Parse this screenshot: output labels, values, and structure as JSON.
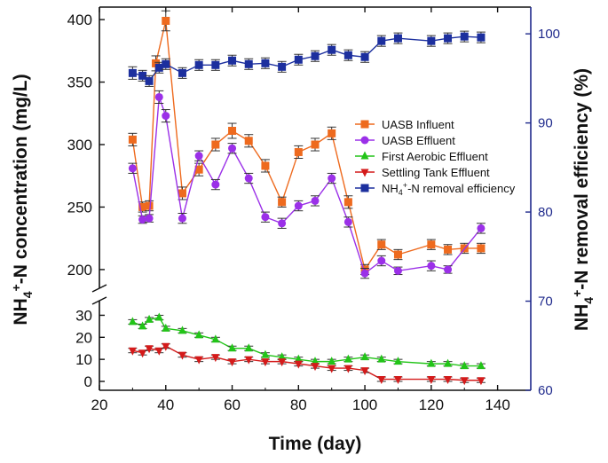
{
  "chart_data": {
    "type": "line",
    "xlabel": "Time (day)",
    "ylabel_left": {
      "main": "NH",
      "sub": "4",
      "sup": "+",
      "rest": "-N concentration (mg/L)"
    },
    "ylabel_right": {
      "main": "NH",
      "sub": "4",
      "sup": "+",
      "rest": "-N removal efficiency (%)"
    },
    "xlim": [
      20,
      150
    ],
    "xticks": [
      20,
      40,
      60,
      80,
      100,
      120,
      140
    ],
    "ylim_left_upper": [
      190,
      410
    ],
    "yticks_left_upper": [
      200,
      250,
      300,
      350,
      400
    ],
    "ylim_left_lower": [
      0,
      33
    ],
    "yticks_left_lower": [
      0,
      10,
      20,
      30
    ],
    "ylim_right": [
      60,
      103
    ],
    "yticks_right": [
      60,
      70,
      80,
      90,
      100
    ],
    "series": [
      {
        "name": "UASB Influent",
        "color": "#ee6a1e",
        "marker": "square",
        "axis": "left",
        "x": [
          30,
          33,
          35,
          37,
          40,
          45,
          50,
          55,
          60,
          65,
          70,
          75,
          80,
          85,
          90,
          95,
          100,
          105,
          110,
          120,
          125,
          130,
          135
        ],
        "y": [
          304,
          250,
          251,
          365,
          399,
          261,
          280,
          300,
          311,
          303,
          283,
          254,
          294,
          300,
          309,
          254,
          200,
          220,
          212,
          220,
          216,
          217,
          217
        ],
        "error": [
          5,
          4,
          4,
          6,
          8,
          5,
          5,
          5,
          6,
          5,
          5,
          4,
          5,
          5,
          5,
          5,
          4,
          4,
          4,
          4,
          4,
          4,
          4
        ]
      },
      {
        "name": "UASB Effluent",
        "color": "#9b30e8",
        "marker": "circle",
        "axis": "left",
        "x": [
          30,
          33,
          35,
          38,
          40,
          45,
          50,
          55,
          60,
          65,
          70,
          75,
          80,
          85,
          90,
          95,
          100,
          105,
          110,
          120,
          125,
          135
        ],
        "y": [
          281,
          240,
          241,
          338,
          323,
          241,
          291,
          268,
          297,
          273,
          242,
          237,
          251,
          255,
          273,
          238,
          197,
          207,
          199,
          203,
          200,
          233
        ],
        "error": [
          4,
          3,
          3,
          5,
          5,
          4,
          4,
          4,
          4,
          4,
          4,
          4,
          4,
          4,
          4,
          4,
          4,
          4,
          3,
          4,
          3,
          4
        ]
      },
      {
        "name": "First Aerobic Effluent",
        "color": "#22c418",
        "marker": "triangle-up",
        "axis": "left",
        "x": [
          30,
          33,
          35,
          38,
          40,
          45,
          50,
          55,
          60,
          65,
          70,
          75,
          80,
          85,
          90,
          95,
          100,
          105,
          110,
          120,
          125,
          130,
          135
        ],
        "y": [
          27,
          25,
          28,
          29,
          24,
          23,
          21,
          19,
          15,
          15,
          12,
          11,
          10,
          9,
          9,
          10,
          11,
          10,
          9,
          8,
          8,
          7,
          7
        ],
        "error": [
          1,
          1,
          1,
          1,
          1,
          1,
          1,
          1,
          1,
          1,
          1,
          1,
          1,
          1,
          1,
          1,
          1,
          1,
          1,
          1,
          1,
          1,
          1
        ]
      },
      {
        "name": "Settling Tank Effluent",
        "color": "#d41a1a",
        "marker": "triangle-down",
        "axis": "left",
        "x": [
          30,
          33,
          35,
          38,
          40,
          45,
          50,
          55,
          60,
          65,
          70,
          75,
          80,
          85,
          90,
          95,
          100,
          105,
          110,
          120,
          125,
          130,
          135
        ],
        "y": [
          14,
          13,
          15,
          14,
          16,
          12,
          10,
          11,
          9,
          10,
          9,
          9,
          8,
          7,
          6,
          6,
          5,
          1,
          1,
          1,
          1,
          0.5,
          0.5
        ],
        "error": [
          1,
          1,
          1,
          1,
          1,
          1,
          1,
          1,
          1,
          1,
          1,
          1,
          1,
          1,
          1,
          1,
          1,
          1,
          1,
          1,
          1,
          1,
          1
        ]
      },
      {
        "name": "NH4+-N removal efficiency",
        "color": "#1c2f9e",
        "marker": "square",
        "axis": "right",
        "x": [
          30,
          33,
          35,
          38,
          40,
          45,
          50,
          55,
          60,
          65,
          70,
          75,
          80,
          85,
          90,
          95,
          100,
          105,
          110,
          120,
          125,
          130,
          135
        ],
        "y": [
          95.6,
          95.3,
          94.7,
          96.2,
          96.6,
          95.6,
          96.5,
          96.5,
          97.0,
          96.6,
          96.7,
          96.3,
          97.1,
          97.5,
          98.2,
          97.6,
          97.4,
          99.2,
          99.5,
          99.2,
          99.5,
          99.7,
          99.6
        ],
        "error": [
          0.7,
          0.6,
          0.6,
          0.6,
          0.6,
          0.6,
          0.6,
          0.6,
          0.6,
          0.6,
          0.6,
          0.6,
          0.6,
          0.6,
          0.6,
          0.6,
          0.6,
          0.6,
          0.6,
          0.6,
          0.6,
          0.6,
          0.6
        ]
      }
    ],
    "legend": {
      "placement": "center-right",
      "entries": [
        "UASB Influent",
        "UASB Effluent",
        "First Aerobic Effluent",
        "Settling Tank Effluent",
        "NH4+-N removal efficiency"
      ]
    }
  }
}
